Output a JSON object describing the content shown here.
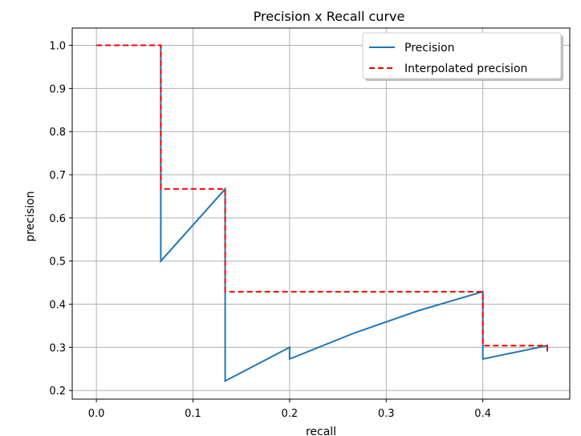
{
  "chart_data": {
    "type": "line",
    "title": "Precision x Recall curve",
    "xlabel": "recall",
    "ylabel": "precision",
    "xlim": [
      -0.025,
      0.49
    ],
    "ylim": [
      0.18,
      1.04
    ],
    "xticks": [
      0.0,
      0.1,
      0.2,
      0.3,
      0.4
    ],
    "xtick_labels": [
      "0.0",
      "0.1",
      "0.2",
      "0.3",
      "0.4"
    ],
    "yticks": [
      0.2,
      0.3,
      0.4,
      0.5,
      0.6,
      0.7,
      0.8,
      0.9,
      1.0
    ],
    "ytick_labels": [
      "0.2",
      "0.3",
      "0.4",
      "0.5",
      "0.6",
      "0.7",
      "0.8",
      "0.9",
      "1.0"
    ],
    "grid": true,
    "legend_position": "top-right",
    "series": [
      {
        "name": "Precision",
        "style": "solid",
        "color": "#1f77b4",
        "x": [
          0.0667,
          0.0667,
          0.0667,
          0.1333,
          0.1333,
          0.1333,
          0.2,
          0.2,
          0.2667,
          0.3333,
          0.4,
          0.4,
          0.4,
          0.4667,
          0.4667
        ],
        "y": [
          1.0,
          0.667,
          0.5,
          0.667,
          0.667,
          0.222,
          0.3,
          0.273,
          0.333,
          0.385,
          0.429,
          0.429,
          0.273,
          0.304,
          0.29
        ]
      },
      {
        "name": "Interpolated precision",
        "style": "dashed",
        "color": "#ff0000",
        "x": [
          0.0,
          0.0667,
          0.0667,
          0.1333,
          0.1333,
          0.4,
          0.4,
          0.4667,
          0.4667
        ],
        "y": [
          1.0,
          1.0,
          0.667,
          0.667,
          0.429,
          0.429,
          0.304,
          0.304,
          0.29
        ]
      }
    ]
  }
}
